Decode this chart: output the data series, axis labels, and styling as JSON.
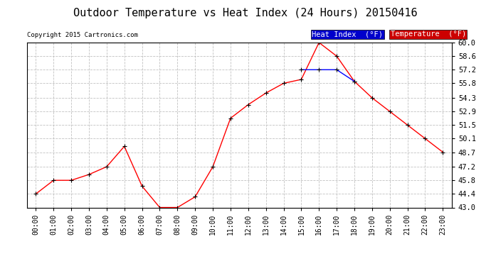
{
  "title": "Outdoor Temperature vs Heat Index (24 Hours) 20150416",
  "copyright": "Copyright 2015 Cartronics.com",
  "x_labels": [
    "00:00",
    "01:00",
    "02:00",
    "03:00",
    "04:00",
    "05:00",
    "06:00",
    "07:00",
    "08:00",
    "09:00",
    "10:00",
    "11:00",
    "12:00",
    "13:00",
    "14:00",
    "15:00",
    "16:00",
    "17:00",
    "18:00",
    "19:00",
    "20:00",
    "21:00",
    "22:00",
    "23:00"
  ],
  "temperature": [
    44.4,
    45.8,
    45.8,
    46.4,
    47.2,
    49.3,
    45.2,
    43.0,
    43.0,
    44.1,
    47.2,
    52.2,
    53.6,
    54.8,
    55.8,
    56.2,
    60.0,
    58.6,
    56.0,
    54.3,
    52.9,
    51.5,
    50.1,
    48.7
  ],
  "heat_index": [
    null,
    null,
    null,
    null,
    null,
    null,
    null,
    null,
    null,
    null,
    null,
    null,
    null,
    null,
    null,
    57.2,
    57.2,
    57.2,
    56.0,
    null,
    null,
    null,
    null,
    null
  ],
  "temp_color": "#ff0000",
  "heat_color": "#0000ff",
  "background_color": "#ffffff",
  "grid_color": "#bbbbbb",
  "title_fontsize": 11,
  "ylim_min": 43.0,
  "ylim_max": 60.0,
  "ytick_labels": [
    "43.0",
    "44.4",
    "45.8",
    "47.2",
    "48.7",
    "50.1",
    "51.5",
    "52.9",
    "54.3",
    "55.8",
    "57.2",
    "58.6",
    "60.0"
  ],
  "ytick_values": [
    43.0,
    44.4,
    45.8,
    47.2,
    48.7,
    50.1,
    51.5,
    52.9,
    54.3,
    55.8,
    57.2,
    58.6,
    60.0
  ],
  "legend_heat_bg": "#0000cc",
  "legend_temp_bg": "#cc0000",
  "legend_heat_text": "Heat Index  (°F)",
  "legend_temp_text": "Temperature  (°F)"
}
